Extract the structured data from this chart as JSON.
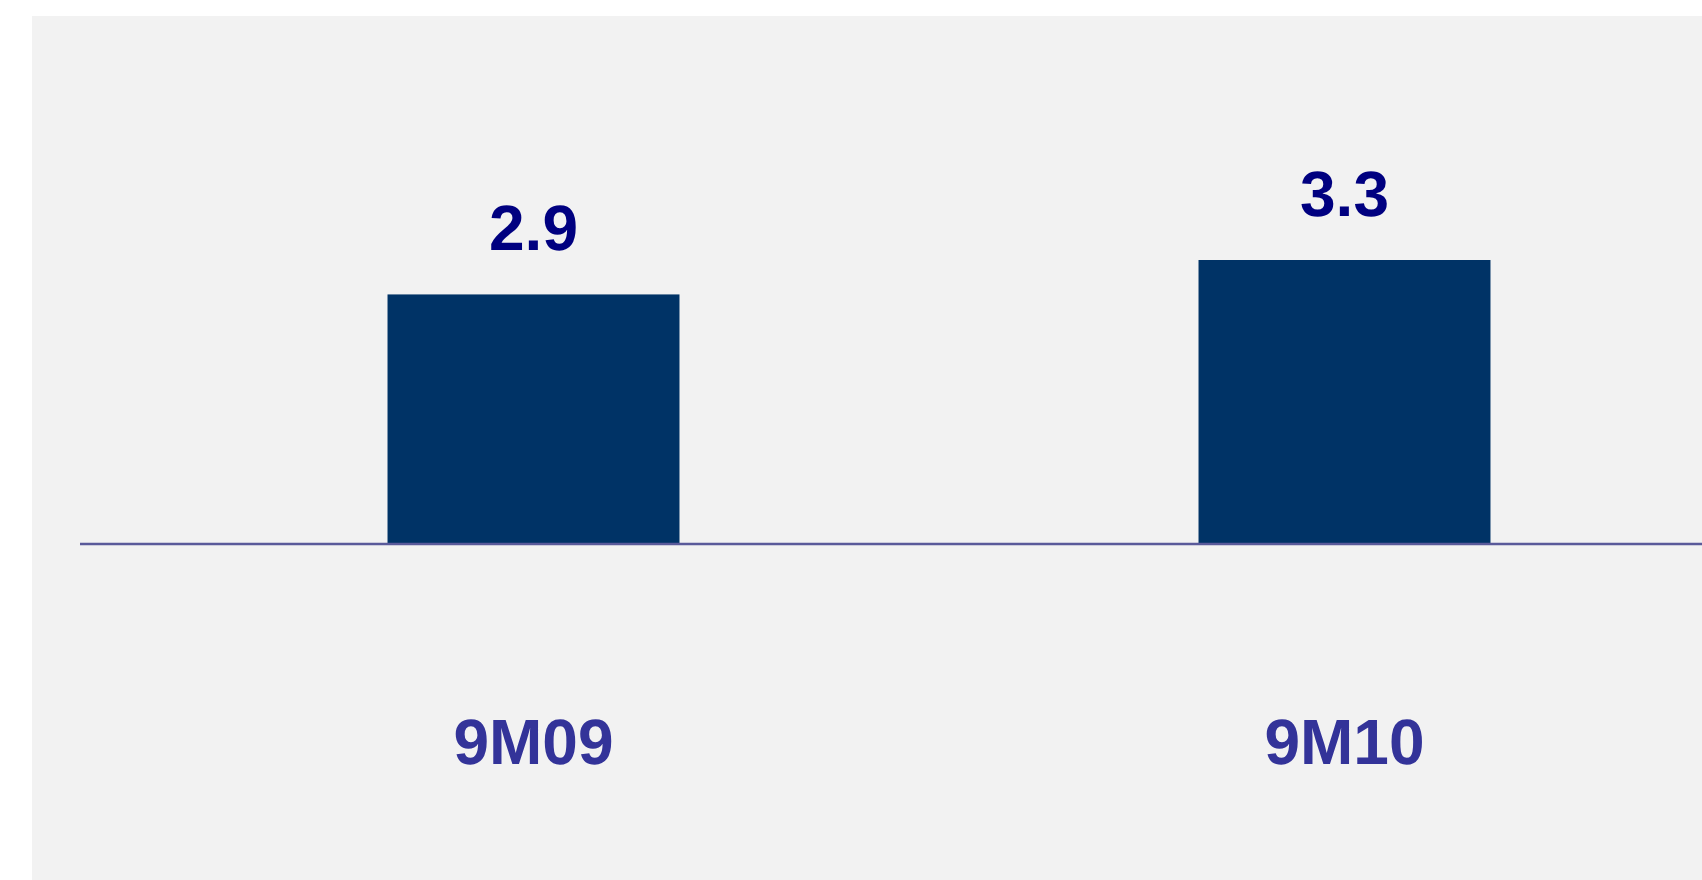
{
  "chart_data": {
    "type": "bar",
    "categories": [
      "9M09",
      "9M10"
    ],
    "values": [
      2.9,
      3.3
    ],
    "color": "#003366",
    "data_labels": true
  }
}
